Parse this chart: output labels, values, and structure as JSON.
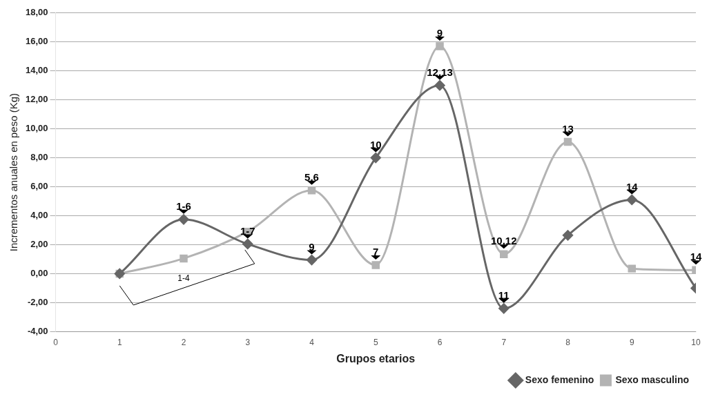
{
  "chart_data": {
    "type": "line",
    "xlabel": "Grupos etarios",
    "ylabel": "Incrementos anuales en peso (Kg)",
    "x": [
      1,
      2,
      3,
      4,
      5,
      6,
      7,
      8,
      9,
      10
    ],
    "xlim": [
      0,
      10
    ],
    "xticks": [
      0,
      1,
      2,
      3,
      4,
      5,
      6,
      7,
      8,
      9,
      10
    ],
    "ylim": [
      -4,
      18
    ],
    "yticks": [
      {
        "value": -4,
        "label": "-4,00"
      },
      {
        "value": -2,
        "label": "-2,00"
      },
      {
        "value": 0,
        "label": "0,00"
      },
      {
        "value": 2,
        "label": "2,00"
      },
      {
        "value": 4,
        "label": "4,00"
      },
      {
        "value": 6,
        "label": "6,00"
      },
      {
        "value": 8,
        "label": "8,00"
      },
      {
        "value": 10,
        "label": "10,00"
      },
      {
        "value": 12,
        "label": "12,00"
      },
      {
        "value": 14,
        "label": "14,00"
      },
      {
        "value": 16,
        "label": "16,00"
      },
      {
        "value": 18,
        "label": "18,00"
      }
    ],
    "grid": "y",
    "legend": "bottom right",
    "series": [
      {
        "name": "Sexo femenino",
        "color": "#666666",
        "marker": "diamond",
        "values": [
          0,
          3.75,
          2.05,
          0.95,
          8.0,
          13.0,
          -2.4,
          2.65,
          5.1,
          -1.0
        ]
      },
      {
        "name": "Sexo masculino",
        "color": "#b3b3b3",
        "marker": "square",
        "values": [
          0,
          1.05,
          2.9,
          5.75,
          0.6,
          15.7,
          1.35,
          9.1,
          0.35,
          0.25
        ]
      }
    ],
    "annotations": [
      {
        "text": "1-6",
        "x": 2,
        "y": 3.75
      },
      "1-4",
      {
        "text": "1-7",
        "x": 3,
        "y": 2.05
      },
      {
        "text": "5,6",
        "x": 4,
        "y": 5.75
      },
      {
        "text": "9",
        "x": 4,
        "y": 0.95
      },
      {
        "text": "10",
        "x": 5,
        "y": 8.0
      },
      {
        "text": "7",
        "x": 5,
        "y": 0.6
      },
      {
        "text": "9",
        "x": 6,
        "y": 15.7
      },
      {
        "text": "12,13",
        "x": 6,
        "y": 13.0
      },
      {
        "text": "10,12",
        "x": 7,
        "y": 1.35
      },
      {
        "text": "11",
        "x": 7,
        "y": -2.4
      },
      {
        "text": "13",
        "x": 8,
        "y": 9.1
      },
      {
        "text": "14",
        "x": 9,
        "y": 5.1
      },
      {
        "text": "14",
        "x": 10,
        "y": 0.25
      }
    ]
  }
}
